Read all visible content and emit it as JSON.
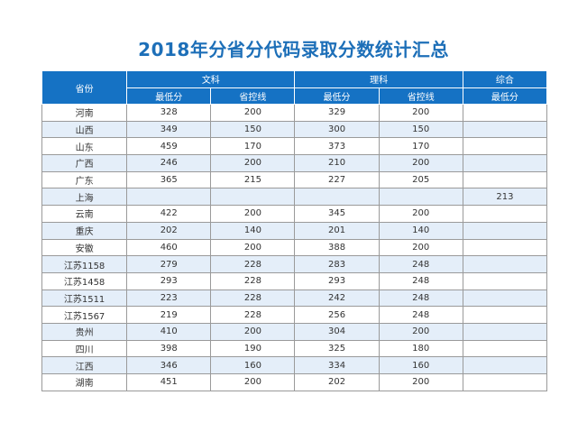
{
  "title": "2018年分省分代码录取分数统计汇总",
  "header": {
    "province": "省份",
    "groups": [
      "文科",
      "理科",
      "综合"
    ],
    "subcolumns": [
      "最低分",
      "省控线",
      "最低分",
      "省控线",
      "最低分"
    ]
  },
  "rows": [
    [
      "河南",
      "328",
      "200",
      "329",
      "200",
      ""
    ],
    [
      "山西",
      "349",
      "150",
      "300",
      "150",
      ""
    ],
    [
      "山东",
      "459",
      "170",
      "373",
      "170",
      ""
    ],
    [
      "广西",
      "246",
      "200",
      "210",
      "200",
      ""
    ],
    [
      "广东",
      "365",
      "215",
      "227",
      "205",
      ""
    ],
    [
      "上海",
      "",
      "",
      "",
      "",
      "213"
    ],
    [
      "云南",
      "422",
      "200",
      "345",
      "200",
      ""
    ],
    [
      "重庆",
      "202",
      "140",
      "201",
      "140",
      ""
    ],
    [
      "安徽",
      "460",
      "200",
      "388",
      "200",
      ""
    ],
    [
      "江苏1158",
      "279",
      "228",
      "283",
      "248",
      ""
    ],
    [
      "江苏1458",
      "293",
      "228",
      "293",
      "248",
      ""
    ],
    [
      "江苏1511",
      "223",
      "228",
      "242",
      "248",
      ""
    ],
    [
      "江苏1567",
      "219",
      "228",
      "256",
      "248",
      ""
    ],
    [
      "贵州",
      "410",
      "200",
      "304",
      "200",
      ""
    ],
    [
      "四川",
      "398",
      "190",
      "325",
      "180",
      ""
    ],
    [
      "江西",
      "346",
      "160",
      "334",
      "160",
      ""
    ],
    [
      "湖南",
      "451",
      "200",
      "202",
      "200",
      ""
    ]
  ],
  "colors": {
    "header_bg": "#1572c4",
    "title": "#1d6fb8",
    "alt_row": "#e4eef9"
  }
}
